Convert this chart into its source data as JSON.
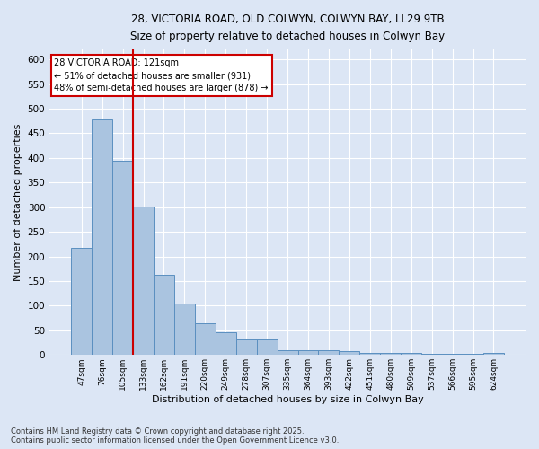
{
  "title_line1": "28, VICTORIA ROAD, OLD COLWYN, COLWYN BAY, LL29 9TB",
  "title_line2": "Size of property relative to detached houses in Colwyn Bay",
  "xlabel": "Distribution of detached houses by size in Colwyn Bay",
  "ylabel": "Number of detached properties",
  "categories": [
    "47sqm",
    "76sqm",
    "105sqm",
    "133sqm",
    "162sqm",
    "191sqm",
    "220sqm",
    "249sqm",
    "278sqm",
    "307sqm",
    "335sqm",
    "364sqm",
    "393sqm",
    "422sqm",
    "451sqm",
    "480sqm",
    "509sqm",
    "537sqm",
    "566sqm",
    "595sqm",
    "624sqm"
  ],
  "values": [
    218,
    478,
    395,
    302,
    163,
    105,
    65,
    47,
    31,
    31,
    10,
    10,
    10,
    8,
    5,
    5,
    5,
    3,
    3,
    3,
    5
  ],
  "bar_color": "#aac4e0",
  "bar_edge_color": "#5a8fc0",
  "background_color": "#dce6f5",
  "grid_color": "#ffffff",
  "annotation_box_color": "#ffffff",
  "annotation_border_color": "#cc0000",
  "vline_color": "#cc0000",
  "vline_x_index": 2.5,
  "annotation_text_line1": "28 VICTORIA ROAD: 121sqm",
  "annotation_text_line2": "← 51% of detached houses are smaller (931)",
  "annotation_text_line3": "48% of semi-detached houses are larger (878) →",
  "footer_line1": "Contains HM Land Registry data © Crown copyright and database right 2025.",
  "footer_line2": "Contains public sector information licensed under the Open Government Licence v3.0.",
  "ylim": [
    0,
    620
  ],
  "yticks": [
    0,
    50,
    100,
    150,
    200,
    250,
    300,
    350,
    400,
    450,
    500,
    550,
    600
  ]
}
